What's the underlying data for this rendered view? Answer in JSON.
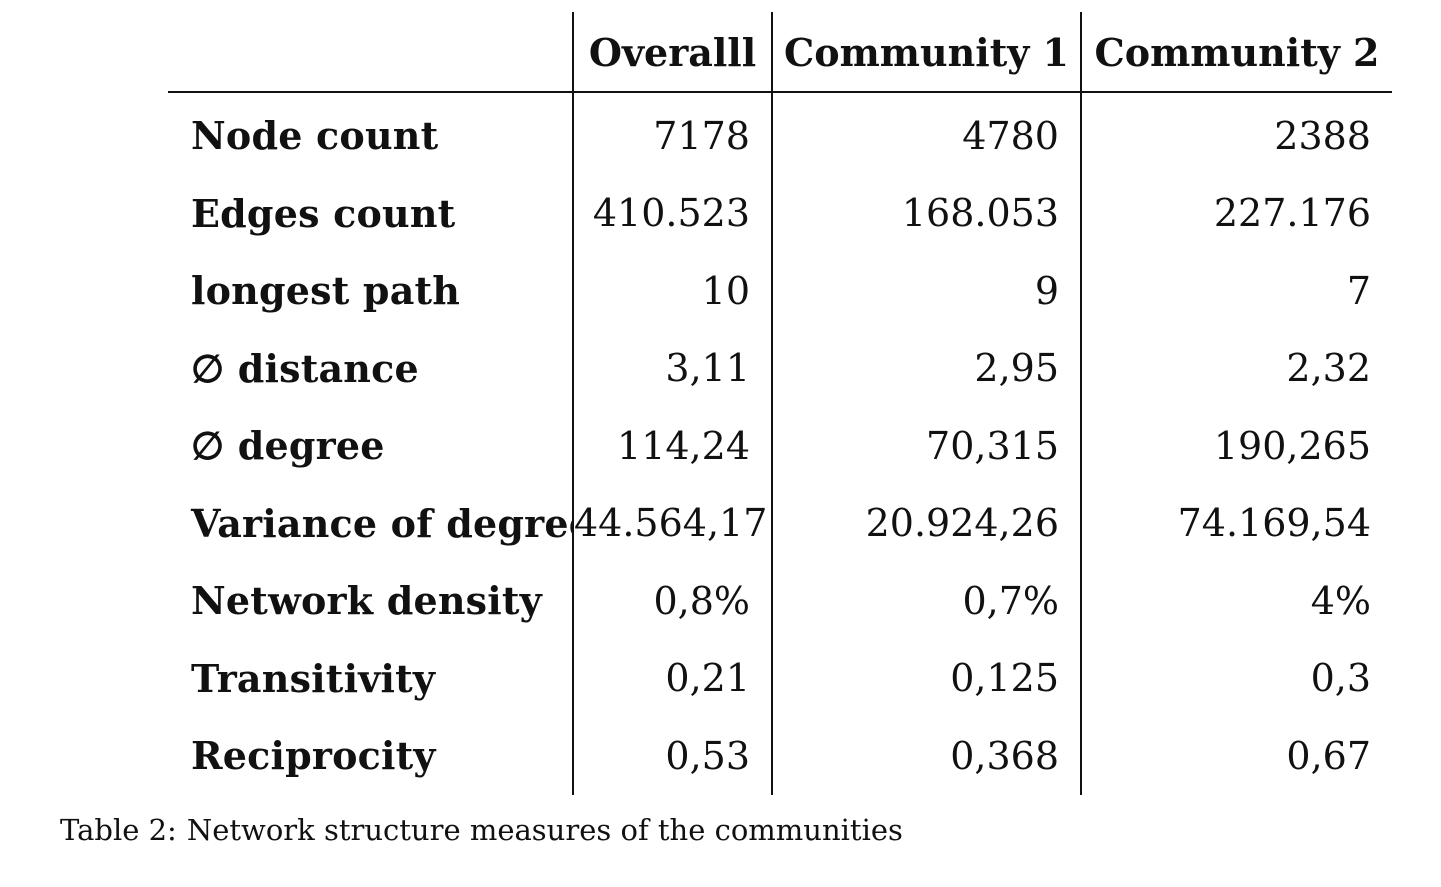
{
  "table": {
    "columns": [
      "",
      "Overalll",
      "Community 1",
      "Community 2"
    ],
    "rows": [
      {
        "label": "Node count",
        "values": [
          "7178",
          "4780",
          "2388"
        ]
      },
      {
        "label": "Edges count",
        "values": [
          "410.523",
          "168.053",
          "227.176"
        ]
      },
      {
        "label": "longest path",
        "values": [
          "10",
          "9",
          "7"
        ]
      },
      {
        "label": "∅ distance",
        "values": [
          "3,11",
          "2,95",
          "2,32"
        ]
      },
      {
        "label": "∅ degree",
        "values": [
          "114,24",
          "70,315",
          "190,265"
        ]
      },
      {
        "label": "Variance of degree",
        "values": [
          "44.564,17",
          "20.924,26",
          "74.169,54"
        ]
      },
      {
        "label": "Network density",
        "values": [
          "0,8%",
          "0,7%",
          "4%"
        ]
      },
      {
        "label": "Transitivity",
        "values": [
          "0,21",
          "0,125",
          "0,3"
        ]
      },
      {
        "label": "Reciprocity",
        "values": [
          "0,53",
          "0,368",
          "0,67"
        ]
      }
    ]
  },
  "caption": {
    "label": "Table 2:",
    "text": "Network structure measures of the communities"
  }
}
